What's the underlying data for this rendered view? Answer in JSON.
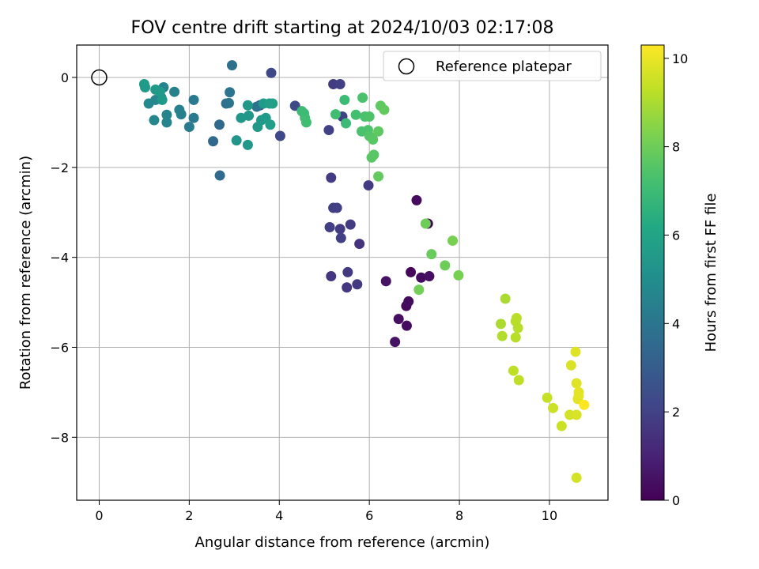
{
  "chart_data": {
    "type": "scatter",
    "title": "FOV centre drift starting at 2024/10/03 02:17:08",
    "xlabel": "Angular distance from reference (arcmin)",
    "ylabel": "Rotation from reference (arcmin)",
    "colorbar_label": "Hours from first FF file",
    "xlim": [
      -0.5,
      11.3
    ],
    "ylim": [
      -9.4,
      0.72
    ],
    "xticks": [
      0,
      2,
      4,
      6,
      8,
      10
    ],
    "yticks": [
      -8,
      -6,
      -4,
      -2,
      0
    ],
    "cbar_range": [
      0,
      10.3
    ],
    "cbar_ticks": [
      0,
      2,
      4,
      6,
      8,
      10
    ],
    "grid": true,
    "colormap": "viridis",
    "legend": {
      "placement": "upper-right",
      "label": "Reference platepar"
    },
    "reference_point": {
      "x": 0,
      "y": 0
    },
    "points": [
      {
        "x": 7.3,
        "y": -3.25,
        "c": 0.1
      },
      {
        "x": 7.05,
        "y": -2.73,
        "c": 0.3
      },
      {
        "x": 6.92,
        "y": -4.33,
        "c": 0.2
      },
      {
        "x": 7.15,
        "y": -4.45,
        "c": 0.3
      },
      {
        "x": 7.33,
        "y": -4.42,
        "c": 0.4
      },
      {
        "x": 6.37,
        "y": -4.53,
        "c": 0.5
      },
      {
        "x": 6.82,
        "y": -5.08,
        "c": 0.2
      },
      {
        "x": 6.87,
        "y": -4.98,
        "c": 0.3
      },
      {
        "x": 6.65,
        "y": -5.37,
        "c": 0.4
      },
      {
        "x": 6.83,
        "y": -5.52,
        "c": 0.3
      },
      {
        "x": 6.57,
        "y": -5.88,
        "c": 0.5
      },
      {
        "x": 5.78,
        "y": -3.7,
        "c": 1.5
      },
      {
        "x": 5.98,
        "y": -2.4,
        "c": 1.8
      },
      {
        "x": 5.2,
        "y": -2.9,
        "c": 1.9
      },
      {
        "x": 5.28,
        "y": -2.9,
        "c": 1.9
      },
      {
        "x": 5.15,
        "y": -2.23,
        "c": 1.8
      },
      {
        "x": 5.12,
        "y": -3.33,
        "c": 1.9
      },
      {
        "x": 5.35,
        "y": -3.37,
        "c": 1.8
      },
      {
        "x": 5.37,
        "y": -3.57,
        "c": 1.9
      },
      {
        "x": 5.58,
        "y": -3.27,
        "c": 1.8
      },
      {
        "x": 5.15,
        "y": -4.42,
        "c": 1.6
      },
      {
        "x": 5.52,
        "y": -4.33,
        "c": 1.7
      },
      {
        "x": 5.73,
        "y": -4.6,
        "c": 1.7
      },
      {
        "x": 5.5,
        "y": -4.67,
        "c": 1.6
      },
      {
        "x": 5.2,
        "y": -0.15,
        "c": 1.8
      },
      {
        "x": 5.35,
        "y": -0.15,
        "c": 1.9
      },
      {
        "x": 5.4,
        "y": -0.87,
        "c": 2.0
      },
      {
        "x": 5.1,
        "y": -1.17,
        "c": 2.0
      },
      {
        "x": 3.82,
        "y": 0.1,
        "c": 2.2
      },
      {
        "x": 4.02,
        "y": -1.3,
        "c": 2.2
      },
      {
        "x": 4.35,
        "y": -0.63,
        "c": 2.3
      },
      {
        "x": 3.57,
        "y": -0.62,
        "c": 2.6
      },
      {
        "x": 2.68,
        "y": -2.18,
        "c": 3.6
      },
      {
        "x": 2.53,
        "y": -1.42,
        "c": 3.5
      },
      {
        "x": 2.67,
        "y": -1.05,
        "c": 3.5
      },
      {
        "x": 2.95,
        "y": 0.27,
        "c": 3.8
      },
      {
        "x": 2.82,
        "y": -0.58,
        "c": 3.8
      },
      {
        "x": 2.88,
        "y": -0.57,
        "c": 3.9
      },
      {
        "x": 2.9,
        "y": -0.33,
        "c": 4.0
      },
      {
        "x": 3.5,
        "y": -0.65,
        "c": 3.9
      },
      {
        "x": 2.1,
        "y": -0.5,
        "c": 4.2
      },
      {
        "x": 2.1,
        "y": -0.9,
        "c": 4.2
      },
      {
        "x": 2.0,
        "y": -1.1,
        "c": 4.3
      },
      {
        "x": 1.82,
        "y": -0.82,
        "c": 4.4
      },
      {
        "x": 1.78,
        "y": -0.72,
        "c": 4.5
      },
      {
        "x": 1.67,
        "y": -0.32,
        "c": 4.5
      },
      {
        "x": 1.43,
        "y": -0.22,
        "c": 4.6
      },
      {
        "x": 1.38,
        "y": -0.45,
        "c": 4.7
      },
      {
        "x": 1.25,
        "y": -0.5,
        "c": 4.7
      },
      {
        "x": 1.1,
        "y": -0.58,
        "c": 4.8
      },
      {
        "x": 1.22,
        "y": -0.95,
        "c": 4.7
      },
      {
        "x": 1.5,
        "y": -0.83,
        "c": 4.6
      },
      {
        "x": 1.5,
        "y": -1.0,
        "c": 4.6
      },
      {
        "x": 3.05,
        "y": -1.4,
        "c": 5.3
      },
      {
        "x": 3.3,
        "y": -1.5,
        "c": 5.4
      },
      {
        "x": 3.15,
        "y": -0.9,
        "c": 5.4
      },
      {
        "x": 3.32,
        "y": -0.85,
        "c": 5.4
      },
      {
        "x": 3.52,
        "y": -1.1,
        "c": 5.5
      },
      {
        "x": 3.6,
        "y": -0.95,
        "c": 5.5
      },
      {
        "x": 3.7,
        "y": -0.9,
        "c": 5.6
      },
      {
        "x": 3.8,
        "y": -1.05,
        "c": 5.7
      },
      {
        "x": 3.3,
        "y": -0.62,
        "c": 5.5
      },
      {
        "x": 3.65,
        "y": -0.58,
        "c": 5.6
      },
      {
        "x": 3.78,
        "y": -0.58,
        "c": 5.7
      },
      {
        "x": 3.85,
        "y": -0.58,
        "c": 5.8
      },
      {
        "x": 1.0,
        "y": -0.15,
        "c": 5.6
      },
      {
        "x": 1.02,
        "y": -0.22,
        "c": 5.6
      },
      {
        "x": 1.25,
        "y": -0.27,
        "c": 5.5
      },
      {
        "x": 1.4,
        "y": -0.5,
        "c": 5.5
      },
      {
        "x": 1.35,
        "y": -0.32,
        "c": 5.6
      },
      {
        "x": 4.55,
        "y": -0.8,
        "c": 7.0
      },
      {
        "x": 4.57,
        "y": -0.9,
        "c": 7.1
      },
      {
        "x": 4.6,
        "y": -1.0,
        "c": 7.1
      },
      {
        "x": 4.5,
        "y": -0.75,
        "c": 7.0
      },
      {
        "x": 5.45,
        "y": -0.5,
        "c": 7.0
      },
      {
        "x": 5.48,
        "y": -1.02,
        "c": 7.0
      },
      {
        "x": 5.25,
        "y": -0.82,
        "c": 7.1
      },
      {
        "x": 5.7,
        "y": -0.83,
        "c": 7.2
      },
      {
        "x": 5.85,
        "y": -0.45,
        "c": 7.3
      },
      {
        "x": 5.9,
        "y": -0.87,
        "c": 7.3
      },
      {
        "x": 5.97,
        "y": -1.17,
        "c": 7.4
      },
      {
        "x": 6.0,
        "y": -0.87,
        "c": 7.4
      },
      {
        "x": 5.83,
        "y": -1.2,
        "c": 7.3
      },
      {
        "x": 6.0,
        "y": -1.3,
        "c": 7.5
      },
      {
        "x": 6.08,
        "y": -1.38,
        "c": 7.6
      },
      {
        "x": 6.05,
        "y": -1.78,
        "c": 7.6
      },
      {
        "x": 6.1,
        "y": -1.72,
        "c": 7.6
      },
      {
        "x": 6.2,
        "y": -1.2,
        "c": 7.7
      },
      {
        "x": 6.25,
        "y": -0.63,
        "c": 7.7
      },
      {
        "x": 6.33,
        "y": -0.72,
        "c": 7.8
      },
      {
        "x": 6.2,
        "y": -2.2,
        "c": 7.8
      },
      {
        "x": 7.25,
        "y": -3.25,
        "c": 8.0
      },
      {
        "x": 7.38,
        "y": -3.93,
        "c": 7.9
      },
      {
        "x": 7.68,
        "y": -4.18,
        "c": 8.0
      },
      {
        "x": 7.85,
        "y": -3.63,
        "c": 8.2
      },
      {
        "x": 7.98,
        "y": -4.4,
        "c": 8.2
      },
      {
        "x": 7.1,
        "y": -4.72,
        "c": 8.1
      },
      {
        "x": 9.02,
        "y": -4.92,
        "c": 9.0
      },
      {
        "x": 8.92,
        "y": -5.48,
        "c": 9.0
      },
      {
        "x": 8.95,
        "y": -5.75,
        "c": 9.1
      },
      {
        "x": 9.27,
        "y": -5.35,
        "c": 9.2
      },
      {
        "x": 9.25,
        "y": -5.42,
        "c": 9.2
      },
      {
        "x": 9.3,
        "y": -5.57,
        "c": 9.2
      },
      {
        "x": 9.25,
        "y": -5.78,
        "c": 9.2
      },
      {
        "x": 9.2,
        "y": -6.52,
        "c": 9.3
      },
      {
        "x": 9.32,
        "y": -6.73,
        "c": 9.3
      },
      {
        "x": 9.95,
        "y": -7.12,
        "c": 9.4
      },
      {
        "x": 10.08,
        "y": -7.35,
        "c": 9.5
      },
      {
        "x": 10.27,
        "y": -7.75,
        "c": 9.5
      },
      {
        "x": 10.45,
        "y": -7.5,
        "c": 9.6
      },
      {
        "x": 10.6,
        "y": -7.5,
        "c": 9.7
      },
      {
        "x": 10.48,
        "y": -6.4,
        "c": 9.7
      },
      {
        "x": 10.58,
        "y": -6.1,
        "c": 9.8
      },
      {
        "x": 10.6,
        "y": -6.8,
        "c": 9.8
      },
      {
        "x": 10.65,
        "y": -7.0,
        "c": 9.9
      },
      {
        "x": 10.65,
        "y": -7.08,
        "c": 9.9
      },
      {
        "x": 10.63,
        "y": -7.15,
        "c": 9.9
      },
      {
        "x": 10.6,
        "y": -8.9,
        "c": 9.6
      },
      {
        "x": 10.77,
        "y": -7.28,
        "c": 10.3
      }
    ]
  }
}
